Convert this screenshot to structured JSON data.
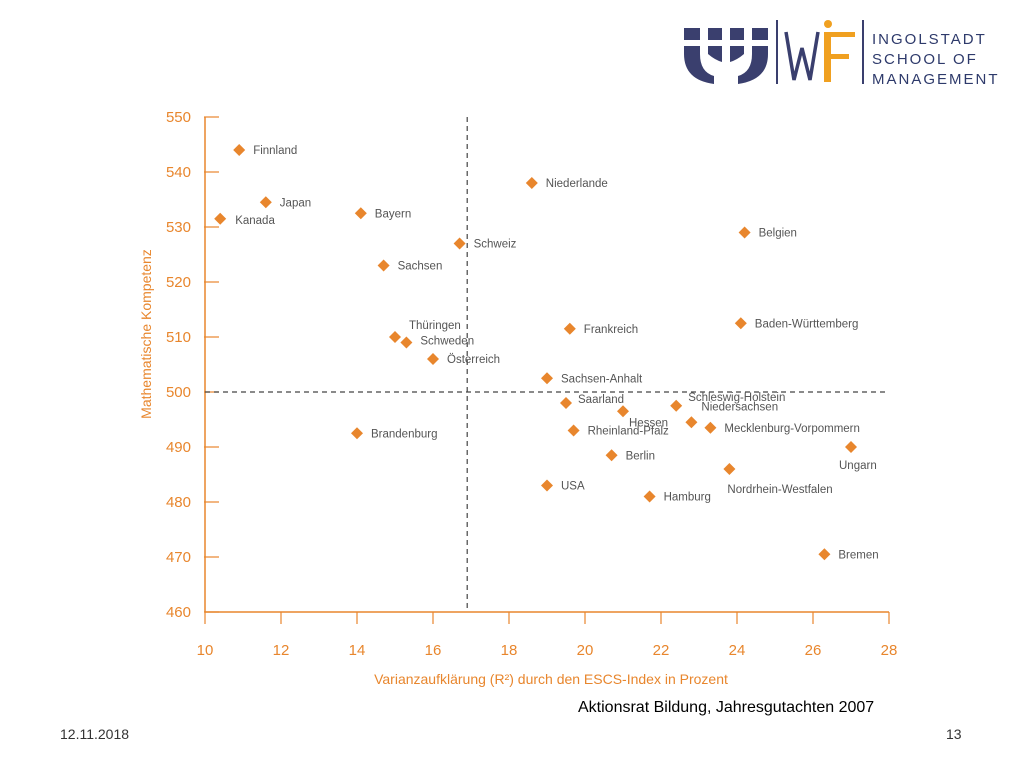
{
  "logo": {
    "line1": "INGOLSTADT",
    "line2": "SCHOOL OF",
    "line3": "MANAGEMENT",
    "brand_color": "#3a3f6e",
    "accent_color": "#f0a020"
  },
  "footer": {
    "source": "Aktionsrat Bildung, Jahresgutachten 2007",
    "date": "12.11.2018",
    "page": "13"
  },
  "chart_data": {
    "type": "scatter",
    "xlabel": "Varianzaufklärung (R²) durch den ESCS-Index in Prozent",
    "ylabel": "Mathematische Kompetenz",
    "xlim": [
      10,
      28
    ],
    "ylim": [
      460,
      550
    ],
    "xticks": [
      10,
      12,
      14,
      16,
      18,
      20,
      22,
      24,
      26,
      28
    ],
    "yticks": [
      460,
      470,
      480,
      490,
      500,
      510,
      520,
      530,
      540,
      550
    ],
    "reference_lines": {
      "x": 16.9,
      "y": 500
    },
    "grid": false,
    "marker_color": "#e8862d",
    "points": [
      {
        "label": "Finnland",
        "x": 10.9,
        "y": 544
      },
      {
        "label": "Japan",
        "x": 11.6,
        "y": 534.5
      },
      {
        "label": "Kanada",
        "x": 10.4,
        "y": 531.5
      },
      {
        "label": "Bayern",
        "x": 14.1,
        "y": 532.5
      },
      {
        "label": "Sachsen",
        "x": 14.7,
        "y": 523
      },
      {
        "label": "Schweiz",
        "x": 16.7,
        "y": 527
      },
      {
        "label": "Niederlande",
        "x": 18.6,
        "y": 538
      },
      {
        "label": "Belgien",
        "x": 24.2,
        "y": 529
      },
      {
        "label": "Thüringen",
        "x": 15.0,
        "y": 510
      },
      {
        "label": "Schweden",
        "x": 15.3,
        "y": 509
      },
      {
        "label": "Österreich",
        "x": 16.0,
        "y": 506
      },
      {
        "label": "Frankreich",
        "x": 19.6,
        "y": 511.5
      },
      {
        "label": "Baden-Württemberg",
        "x": 24.1,
        "y": 512.5
      },
      {
        "label": "Sachsen-Anhalt",
        "x": 19.0,
        "y": 502.5
      },
      {
        "label": "Saarland",
        "x": 19.5,
        "y": 498
      },
      {
        "label": "Hessen",
        "x": 21.0,
        "y": 496.5
      },
      {
        "label": "Schleswig-Holstein",
        "x": 22.4,
        "y": 497.5
      },
      {
        "label": "Niedersachsen",
        "x": 22.8,
        "y": 494.5
      },
      {
        "label": "Rheinland-Pfalz",
        "x": 19.7,
        "y": 493
      },
      {
        "label": "Mecklenburg-Vorpommern",
        "x": 23.3,
        "y": 493.5
      },
      {
        "label": "Brandenburg",
        "x": 14.0,
        "y": 492.5
      },
      {
        "label": "Berlin",
        "x": 20.7,
        "y": 488.5
      },
      {
        "label": "Ungarn",
        "x": 27.0,
        "y": 490
      },
      {
        "label": "Nordrhein-Westfalen",
        "x": 23.8,
        "y": 486
      },
      {
        "label": "USA",
        "x": 19.0,
        "y": 483
      },
      {
        "label": "Hamburg",
        "x": 21.7,
        "y": 481
      },
      {
        "label": "Bremen",
        "x": 26.3,
        "y": 470.5
      }
    ]
  }
}
